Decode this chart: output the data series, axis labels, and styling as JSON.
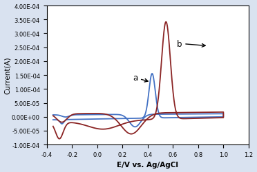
{
  "xlim": [
    -0.4,
    1.2
  ],
  "ylim": [
    -0.0001,
    0.0004
  ],
  "xlabel": "E/V vs. Ag/AgCl",
  "ylabel": "Current(A)",
  "yticks": [
    -0.0001,
    -5e-05,
    0.0,
    5e-05,
    0.0001,
    0.00015,
    0.0002,
    0.00025,
    0.0003,
    0.00035,
    0.0004
  ],
  "xticks": [
    -0.4,
    -0.2,
    0.0,
    0.2,
    0.4,
    0.6,
    0.8,
    1.0,
    1.2
  ],
  "color_a": "#4472c4",
  "color_b": "#8B2525",
  "bg_color": "#d9e2f0",
  "lw": 1.3
}
